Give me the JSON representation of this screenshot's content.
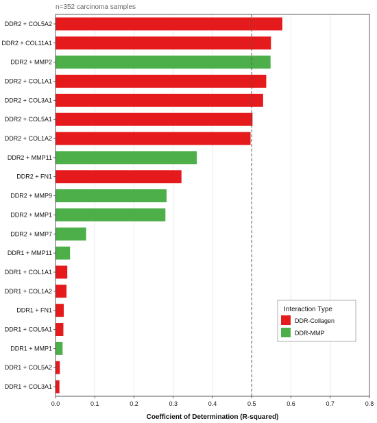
{
  "chart_data": {
    "type": "bar",
    "orientation": "horizontal",
    "subtitle": "n=352 carcinoma samples",
    "xlabel": "Coefficient of Determination (R-squared)",
    "ylabel": "",
    "xlim": [
      0,
      0.8
    ],
    "xticks": [
      "0.0",
      "0.1",
      "0.2",
      "0.3",
      "0.4",
      "0.5",
      "0.6",
      "0.7",
      "0.8"
    ],
    "reference_line": 0.5,
    "grid": "vertical",
    "categories": [
      "DDR2 + COL5A2",
      "DDR2 + COL11A1",
      "DDR2 + MMP2",
      "DDR2 + COL1A1",
      "DDR2 + COL3A1",
      "DDR2 + COL5A1",
      "DDR2 + COL1A2",
      "DDR2 + MMP11",
      "DDR2 + FN1",
      "DDR2 + MMP9",
      "DDR2 + MMP1",
      "DDR2 + MMP7",
      "DDR1 + MMP11",
      "DDR1 + COL1A1",
      "DDR1 + COL1A2",
      "DDR1 + FN1",
      "DDR1 + COL5A1",
      "DDR1 + MMP1",
      "DDR1 + COL5A2",
      "DDR1 + COL3A1"
    ],
    "values": [
      0.578,
      0.549,
      0.548,
      0.537,
      0.529,
      0.502,
      0.497,
      0.36,
      0.321,
      0.283,
      0.28,
      0.078,
      0.037,
      0.03,
      0.028,
      0.021,
      0.02,
      0.018,
      0.011,
      0.01
    ],
    "groups": [
      "DDR-Collagen",
      "DDR-Collagen",
      "DDR-MMP",
      "DDR-Collagen",
      "DDR-Collagen",
      "DDR-Collagen",
      "DDR-Collagen",
      "DDR-MMP",
      "DDR-Collagen",
      "DDR-MMP",
      "DDR-MMP",
      "DDR-MMP",
      "DDR-MMP",
      "DDR-Collagen",
      "DDR-Collagen",
      "DDR-Collagen",
      "DDR-Collagen",
      "DDR-MMP",
      "DDR-Collagen",
      "DDR-Collagen"
    ],
    "legend": {
      "title": "Interaction Type",
      "placement": "lower-right",
      "entries": [
        {
          "name": "DDR-Collagen",
          "color": "#e41a1c"
        },
        {
          "name": "DDR-MMP",
          "color": "#4daf4a"
        }
      ]
    }
  }
}
